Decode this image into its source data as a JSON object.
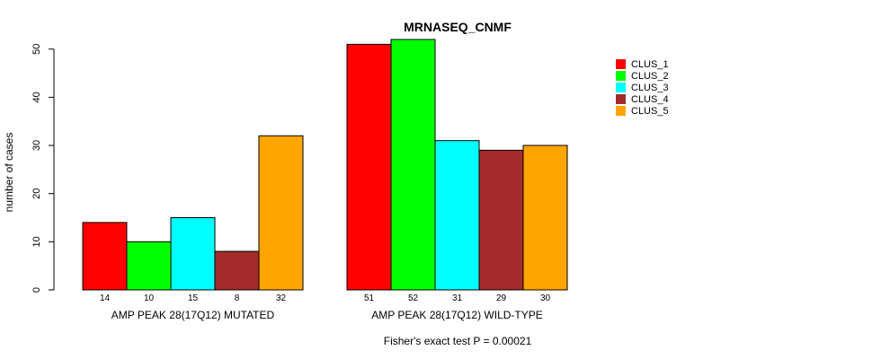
{
  "chart_data": {
    "type": "bar",
    "title": "MRNASEQ_CNMF",
    "ylabel": "number of cases",
    "ylim": [
      0,
      52
    ],
    "yticks": [
      0,
      10,
      20,
      30,
      40,
      50
    ],
    "groups": [
      "AMP PEAK 28(17Q12) MUTATED",
      "AMP PEAK 28(17Q12) WILD-TYPE"
    ],
    "series": [
      {
        "name": "CLUS_1",
        "color": "#ff0000",
        "values": [
          14,
          51
        ]
      },
      {
        "name": "CLUS_2",
        "color": "#00ff00",
        "values": [
          10,
          52
        ]
      },
      {
        "name": "CLUS_3",
        "color": "#00ffff",
        "values": [
          15,
          31
        ]
      },
      {
        "name": "CLUS_4",
        "color": "#a52a2a",
        "values": [
          8,
          29
        ]
      },
      {
        "name": "CLUS_5",
        "color": "#ffa500",
        "values": [
          32,
          30
        ]
      }
    ],
    "legend_position": "top-right",
    "footer": "Fisher's exact test P = 0.00021"
  }
}
